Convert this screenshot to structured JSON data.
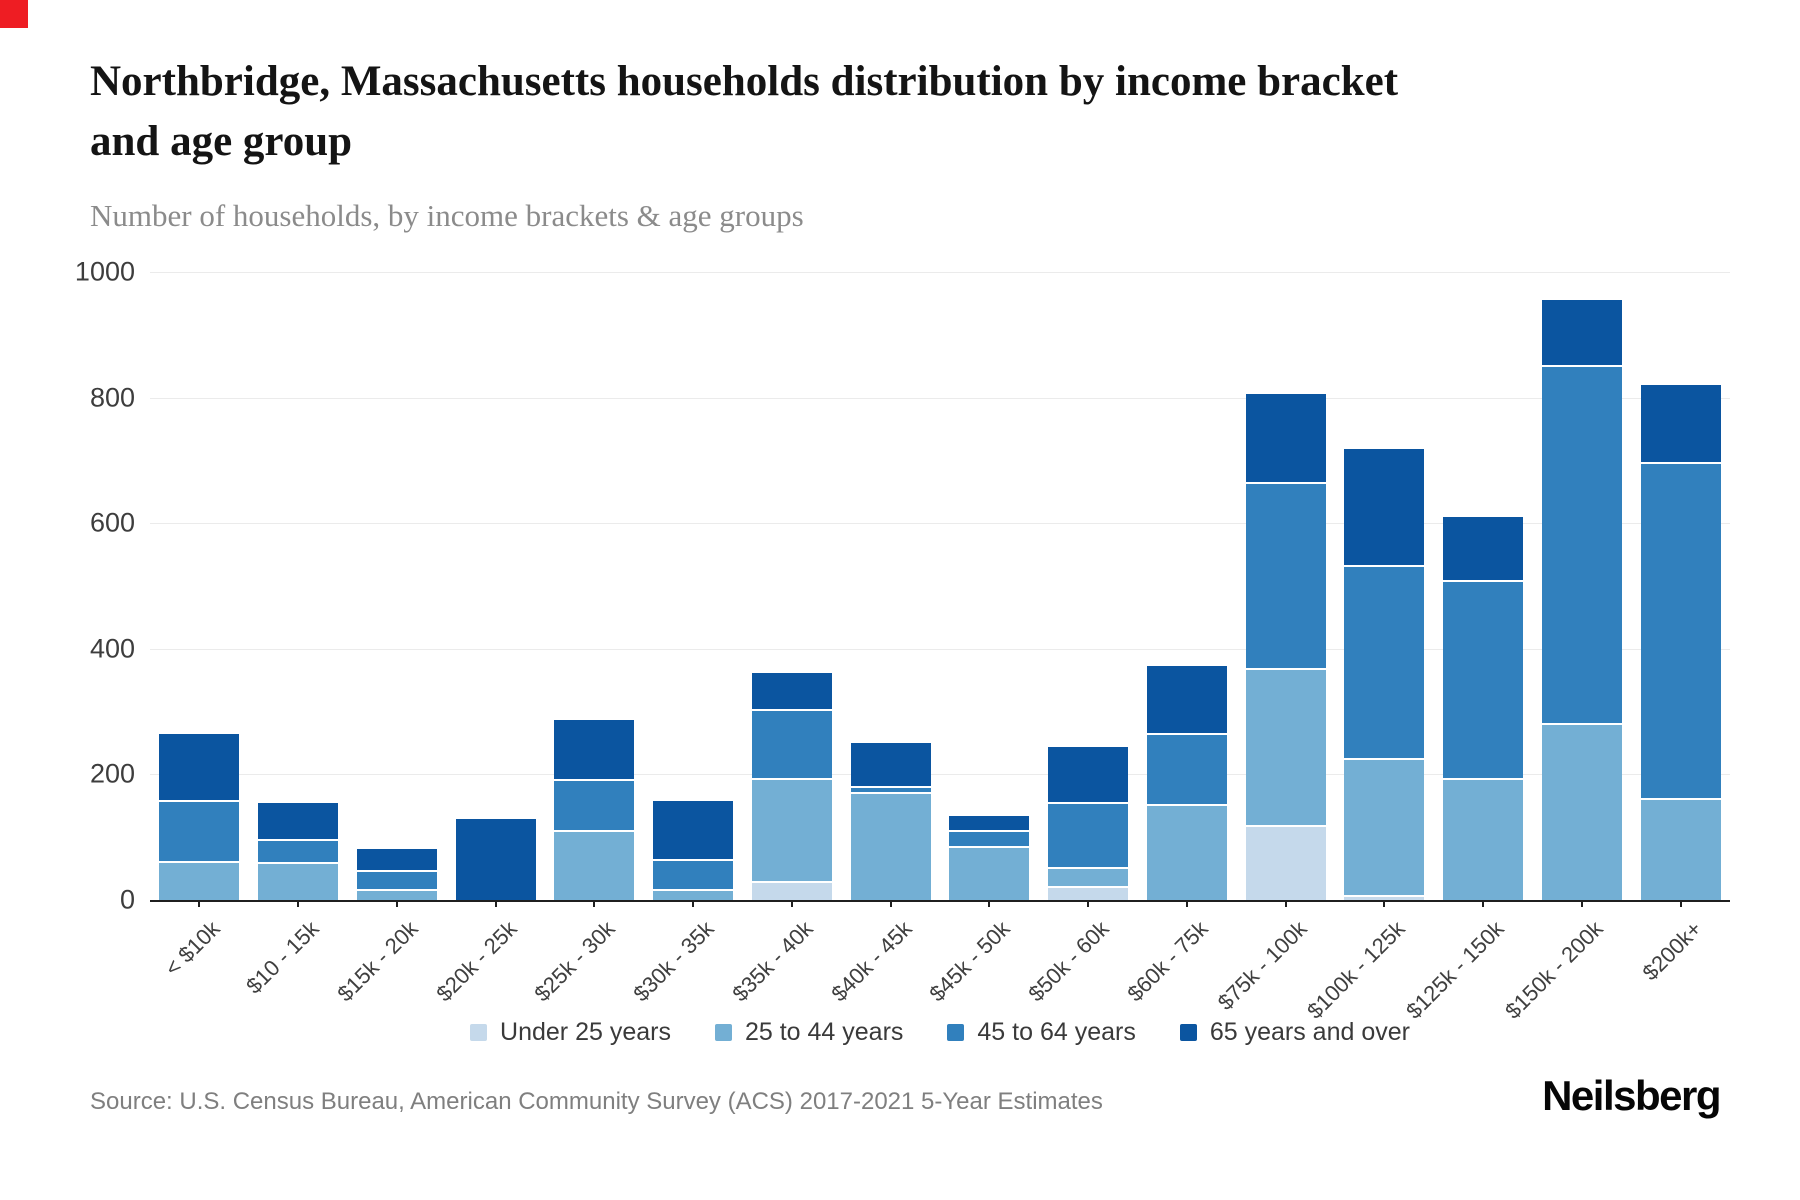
{
  "page": {
    "corner_flag_color": "#ee1d23"
  },
  "header": {
    "title": "Northbridge, Massachusetts households distribution by income bracket and age group",
    "subtitle": "Number of households, by income brackets & age groups"
  },
  "chart_data": {
    "type": "bar",
    "stacked": true,
    "grid": true,
    "legend_position": "bottom",
    "ylim": [
      0,
      1000
    ],
    "yticks": [
      0,
      200,
      400,
      600,
      800,
      1000
    ],
    "categories": [
      "< $10k",
      "$10 - 15k",
      "$15k - 20k",
      "$20k - 25k",
      "$25k - 30k",
      "$30k - 35k",
      "$35k - 40k",
      "$40k - 45k",
      "$45k - 50k",
      "$50k - 60k",
      "$60k - 75k",
      "$75k - 100k",
      "$100k - 125k",
      "$125k - 150k",
      "$150k - 200k",
      "$200k+"
    ],
    "series": [
      {
        "name": "Under 25 years",
        "color": "#c5d9eb",
        "values": [
          0,
          0,
          0,
          0,
          0,
          0,
          30,
          0,
          0,
          22,
          0,
          120,
          8,
          0,
          0,
          0
        ]
      },
      {
        "name": "25 to 44 years",
        "color": "#73afd4",
        "values": [
          62,
          60,
          18,
          0,
          112,
          18,
          165,
          172,
          86,
          30,
          153,
          250,
          218,
          195,
          282,
          163
        ]
      },
      {
        "name": "45 to 64 years",
        "color": "#3180bd",
        "values": [
          98,
          37,
          30,
          0,
          80,
          47,
          109,
          10,
          26,
          104,
          113,
          295,
          307,
          315,
          570,
          535
        ]
      },
      {
        "name": "65 years and over",
        "color": "#0b55a0",
        "values": [
          105,
          57,
          34,
          129,
          95,
          93,
          58,
          68,
          21,
          88,
          106,
          140,
          185,
          100,
          103,
          122
        ]
      }
    ],
    "totals": [
      265,
      154,
      82,
      129,
      287,
      158,
      362,
      250,
      133,
      244,
      372,
      805,
      718,
      610,
      955,
      820
    ],
    "separator_color": "#ffffff",
    "gridline_color": "#ebebeb",
    "axis_color": "#1f1f1f"
  },
  "footer": {
    "source": "Source: U.S. Census Bureau, American Community Survey (ACS) 2017-2021 5-Year Estimates",
    "brand": "Neilsberg"
  }
}
